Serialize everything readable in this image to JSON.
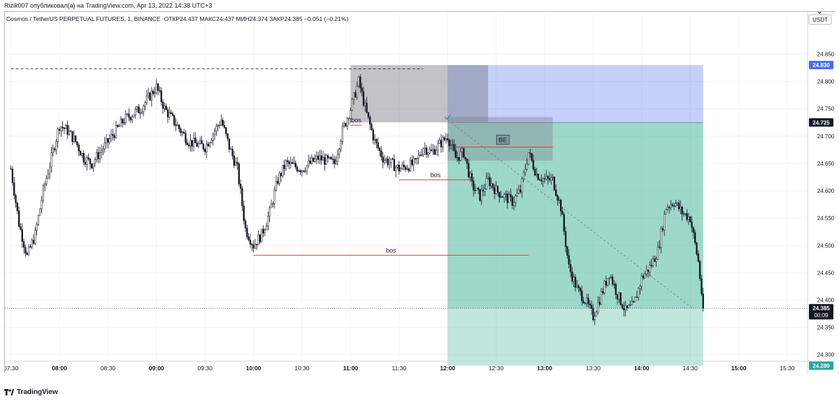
{
  "header": {
    "published": "Rizik007 опубликовал(а) на TradingView.com, Apr 13, 2022 14:38 UTC+3",
    "symbol": "Cosmos / TetherUS PERPETUAL FUTURES, 1, BINANCE",
    "ohlc": "ОТКР24.437 МАКС24.437 МИН24.374 ЗАКР24.385 −0.051 (−0.21%)"
  },
  "currency_label": "USDT",
  "footer": {
    "brand": "TradingView"
  },
  "colors": {
    "up": "#131722",
    "down": "#131722",
    "stop_zone": "rgba(102,132,240,0.38)",
    "target_zone": "rgba(76,184,160,0.55)",
    "target_zone_light": "rgba(76,184,160,0.35)",
    "gray_zone": "rgba(120,123,134,0.45)",
    "level_line": "#f23645",
    "price_tag_dark": "#131722",
    "price_tag_blue": "#4a6cf7",
    "price_tag_green": "#26a69a"
  },
  "chart_data": {
    "type": "candlestick",
    "x_ticks": [
      "07:30",
      "08:00",
      "08:30",
      "09:00",
      "09:30",
      "10:00",
      "10:30",
      "11:00",
      "11:30",
      "12:00",
      "12:30",
      "13:00",
      "13:30",
      "14:00",
      "14:30",
      "15:00",
      "15:30"
    ],
    "y_ticks": [
      "24.850",
      "24.800",
      "24.750",
      "24.700",
      "24.650",
      "24.600",
      "24.550",
      "24.500",
      "24.450",
      "24.400",
      "24.350",
      "24.300"
    ],
    "ylim": [
      24.28,
      24.87
    ],
    "price_path": [
      [
        "07:30",
        24.64
      ],
      [
        "07:35",
        24.54
      ],
      [
        "07:40",
        24.48
      ],
      [
        "07:45",
        24.52
      ],
      [
        "07:50",
        24.6
      ],
      [
        "07:55",
        24.66
      ],
      [
        "08:00",
        24.72
      ],
      [
        "08:05",
        24.71
      ],
      [
        "08:10",
        24.69
      ],
      [
        "08:15",
        24.66
      ],
      [
        "08:20",
        24.65
      ],
      [
        "08:30",
        24.69
      ],
      [
        "08:40",
        24.73
      ],
      [
        "08:50",
        24.75
      ],
      [
        "09:00",
        24.79
      ],
      [
        "09:05",
        24.75
      ],
      [
        "09:10",
        24.73
      ],
      [
        "09:20",
        24.69
      ],
      [
        "09:30",
        24.68
      ],
      [
        "09:40",
        24.73
      ],
      [
        "09:45",
        24.68
      ],
      [
        "09:50",
        24.64
      ],
      [
        "09:55",
        24.53
      ],
      [
        "10:00",
        24.5
      ],
      [
        "10:05",
        24.52
      ],
      [
        "10:10",
        24.56
      ],
      [
        "10:15",
        24.62
      ],
      [
        "10:20",
        24.65
      ],
      [
        "10:30",
        24.64
      ],
      [
        "10:40",
        24.66
      ],
      [
        "10:50",
        24.65
      ],
      [
        "10:55",
        24.71
      ],
      [
        "11:00",
        24.75
      ],
      [
        "11:05",
        24.8
      ],
      [
        "11:10",
        24.74
      ],
      [
        "11:15",
        24.69
      ],
      [
        "11:20",
        24.66
      ],
      [
        "11:30",
        24.64
      ],
      [
        "11:40",
        24.65
      ],
      [
        "11:45",
        24.68
      ],
      [
        "11:50",
        24.67
      ],
      [
        "12:00",
        24.7
      ],
      [
        "12:05",
        24.66
      ],
      [
        "12:10",
        24.67
      ],
      [
        "12:15",
        24.61
      ],
      [
        "12:20",
        24.59
      ],
      [
        "12:25",
        24.62
      ],
      [
        "12:30",
        24.6
      ],
      [
        "12:35",
        24.59
      ],
      [
        "12:40",
        24.58
      ],
      [
        "12:45",
        24.6
      ],
      [
        "12:50",
        24.67
      ],
      [
        "12:55",
        24.63
      ],
      [
        "13:00",
        24.62
      ],
      [
        "13:05",
        24.62
      ],
      [
        "13:10",
        24.57
      ],
      [
        "13:15",
        24.46
      ],
      [
        "13:20",
        24.42
      ],
      [
        "13:25",
        24.4
      ],
      [
        "13:30",
        24.37
      ],
      [
        "13:35",
        24.41
      ],
      [
        "13:40",
        24.45
      ],
      [
        "13:45",
        24.41
      ],
      [
        "13:50",
        24.38
      ],
      [
        "13:55",
        24.39
      ],
      [
        "14:00",
        24.44
      ],
      [
        "14:05",
        24.46
      ],
      [
        "14:10",
        24.49
      ],
      [
        "14:15",
        24.57
      ],
      [
        "14:20",
        24.58
      ],
      [
        "14:25",
        24.56
      ],
      [
        "14:30",
        24.55
      ],
      [
        "14:35",
        24.47
      ],
      [
        "14:38",
        24.385
      ]
    ],
    "position": {
      "entry": 24.725,
      "stop": 24.83,
      "target": 24.28,
      "start_time": "12:00",
      "end_time": "14:38"
    },
    "gray_zone": {
      "from_time": "11:00",
      "to_time": "12:25",
      "top": 24.83,
      "bottom": 24.725
    },
    "gray_zone2": {
      "from_time": "12:00",
      "to_time": "13:05",
      "top": 24.735,
      "bottom": 24.655
    },
    "dashed_high": {
      "from_time": "07:30",
      "to_time": "11:45",
      "price": 24.823
    },
    "levels": [
      {
        "label": "bos",
        "price": 24.482,
        "from_time": "10:00",
        "to_time": "12:50"
      },
      {
        "label": "bos",
        "price": 24.62,
        "from_time": "11:30",
        "to_time": "12:15"
      },
      {
        "label": "bos",
        "price": 24.72,
        "from_time": "11:00",
        "to_time": "11:07"
      }
    ],
    "be_label": "BE",
    "be_line": {
      "price": 24.68,
      "from_time": "12:05",
      "to_time": "13:05"
    },
    "price_tags": [
      {
        "price": 24.83,
        "text": "24.830"
      },
      {
        "price": 24.725,
        "text": "24.725"
      },
      {
        "price": 24.385,
        "text": "24.385",
        "sub": "00:09"
      },
      {
        "price": 24.28,
        "text": "24.280"
      }
    ],
    "current_price": 24.385
  }
}
